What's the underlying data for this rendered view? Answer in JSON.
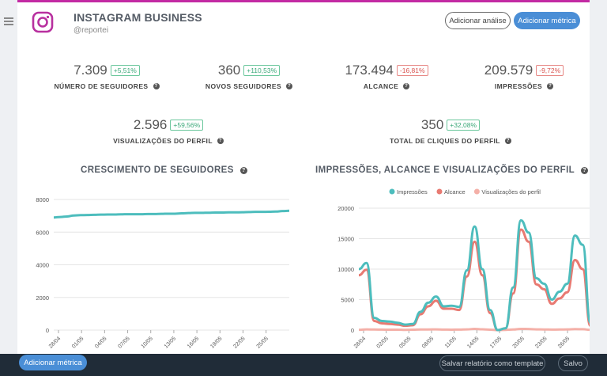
{
  "header": {
    "title": "INSTAGRAM BUSINESS",
    "handle": "@reportei",
    "add_analysis": "Adicionar análise",
    "add_metric": "Adicionar métrica"
  },
  "metrics": [
    {
      "value": "7.309",
      "change": "+5,51%",
      "dir": "up",
      "label": "NÚMERO DE SEGUIDORES"
    },
    {
      "value": "360",
      "change": "+110,53%",
      "dir": "up",
      "label": "NOVOS SEGUIDORES"
    },
    {
      "value": "173.494",
      "change": "-16,81%",
      "dir": "down",
      "label": "ALCANCE"
    },
    {
      "value": "209.579",
      "change": "-9,72%",
      "dir": "down",
      "label": "IMPRESSÕES"
    },
    {
      "value": "2.596",
      "change": "+59,56%",
      "dir": "up",
      "label": "VISUALIZAÇÕES DO PERFIL"
    },
    {
      "value": "350",
      "change": "+32,08%",
      "dir": "up",
      "label": "TOTAL DE CLIQUES DO PERFIL"
    }
  ],
  "charts": {
    "followers_title": "CRESCIMENTO DE SEGUIDORES",
    "impressions_title": "IMPRESSÕES, ALCANCE E VISUALIZAÇÕES DO PERFIL"
  },
  "chart_data": [
    {
      "type": "line",
      "title": "CRESCIMENTO DE SEGUIDORES",
      "ylim": [
        0,
        8000
      ],
      "yticks": [
        0,
        2000,
        4000,
        6000,
        8000
      ],
      "xticks": [
        "28/04",
        "01/05",
        "04/05",
        "07/05",
        "10/05",
        "13/05",
        "16/05",
        "19/05",
        "22/05",
        "25/05"
      ],
      "grid": true,
      "series": [
        {
          "color": "#4dbdbd",
          "values": [
            6900,
            6930,
            6960,
            7020,
            7040,
            7050,
            7060,
            7070,
            7080,
            7080,
            7090,
            7100,
            7100,
            7100,
            7110,
            7110,
            7120,
            7130,
            7130,
            7150,
            7170,
            7180,
            7180,
            7190,
            7200,
            7200,
            7210,
            7210,
            7220,
            7230,
            7240,
            7240,
            7250,
            7260,
            7290,
            7309
          ]
        }
      ]
    },
    {
      "type": "line",
      "title": "IMPRESSÕES, ALCANCE E VISUALIZAÇÕES DO PERFIL",
      "ylim": [
        0,
        20000
      ],
      "yticks": [
        0,
        5000,
        10000,
        15000,
        20000
      ],
      "xticks": [
        "28/04",
        "02/05",
        "05/05",
        "08/05",
        "11/05",
        "14/05",
        "17/05",
        "20/05",
        "23/05",
        "26/05"
      ],
      "legend": "top",
      "grid": true,
      "series": [
        {
          "name": "Impressões",
          "color": "#4dbdbd",
          "values": [
            10000,
            11000,
            2000,
            1500,
            1400,
            1200,
            900,
            1000,
            3000,
            4500,
            5500,
            3900,
            4000,
            3800,
            9800,
            17000,
            10000,
            3300,
            0,
            300,
            7000,
            18000,
            16000,
            8500,
            7600,
            5000,
            6300,
            7600,
            15500,
            14000,
            1200
          ]
        },
        {
          "name": "Alcance",
          "color": "#e87a72",
          "values": [
            9000,
            9900,
            1500,
            1100,
            1000,
            900,
            700,
            800,
            2600,
            3900,
            4800,
            3500,
            3500,
            3300,
            8800,
            14500,
            9000,
            2800,
            0,
            300,
            6000,
            16500,
            14500,
            7500,
            6700,
            4300,
            5200,
            6200,
            11500,
            10000,
            700
          ]
        },
        {
          "name": "Visualizações do perfil",
          "color": "#f4b0a8",
          "values": [
            50,
            120,
            90,
            80,
            60,
            70,
            40,
            60,
            90,
            100,
            120,
            80,
            70,
            80,
            110,
            200,
            130,
            70,
            0,
            30,
            90,
            200,
            180,
            120,
            100,
            80,
            90,
            110,
            160,
            140,
            40
          ]
        }
      ]
    }
  ],
  "footer": {
    "add_metric": "Adicionar métrica",
    "save_template": "Salvar relatório como template",
    "saved": "Salvo"
  }
}
